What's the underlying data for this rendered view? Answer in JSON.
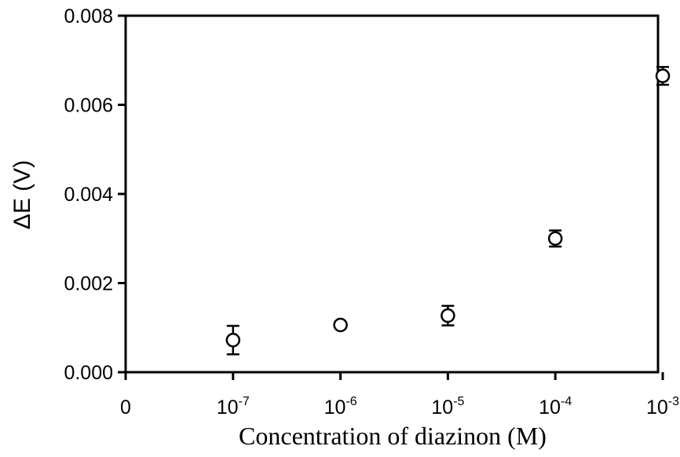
{
  "chart_data": {
    "type": "scatter",
    "title": "",
    "xlabel": "Concentration of diazinon (M)",
    "ylabel": "ΔE (V)",
    "ylim": [
      0,
      0.008
    ],
    "y_ticks": [
      "0.000",
      "0.002",
      "0.004",
      "0.006",
      "0.008"
    ],
    "y_tick_values": [
      0,
      0.002,
      0.004,
      0.006,
      0.008
    ],
    "x_ticks": [
      {
        "base": "0",
        "exp": ""
      },
      {
        "base": "10",
        "exp": "-7"
      },
      {
        "base": "10",
        "exp": "-6"
      },
      {
        "base": "10",
        "exp": "-5"
      },
      {
        "base": "10",
        "exp": "-4"
      },
      {
        "base": "10",
        "exp": "-3"
      }
    ],
    "grid": false,
    "marker": "open-circle",
    "points": [
      {
        "x": "10-7",
        "y": 0.00072,
        "err": 0.00032
      },
      {
        "x": "10-6",
        "y": 0.00106,
        "err": 0.0
      },
      {
        "x": "10-5",
        "y": 0.00127,
        "err": 0.00022
      },
      {
        "x": "10-4",
        "y": 0.003,
        "err": 0.00018
      },
      {
        "x": "10-3",
        "y": 0.00665,
        "err": 0.0002
      }
    ]
  }
}
